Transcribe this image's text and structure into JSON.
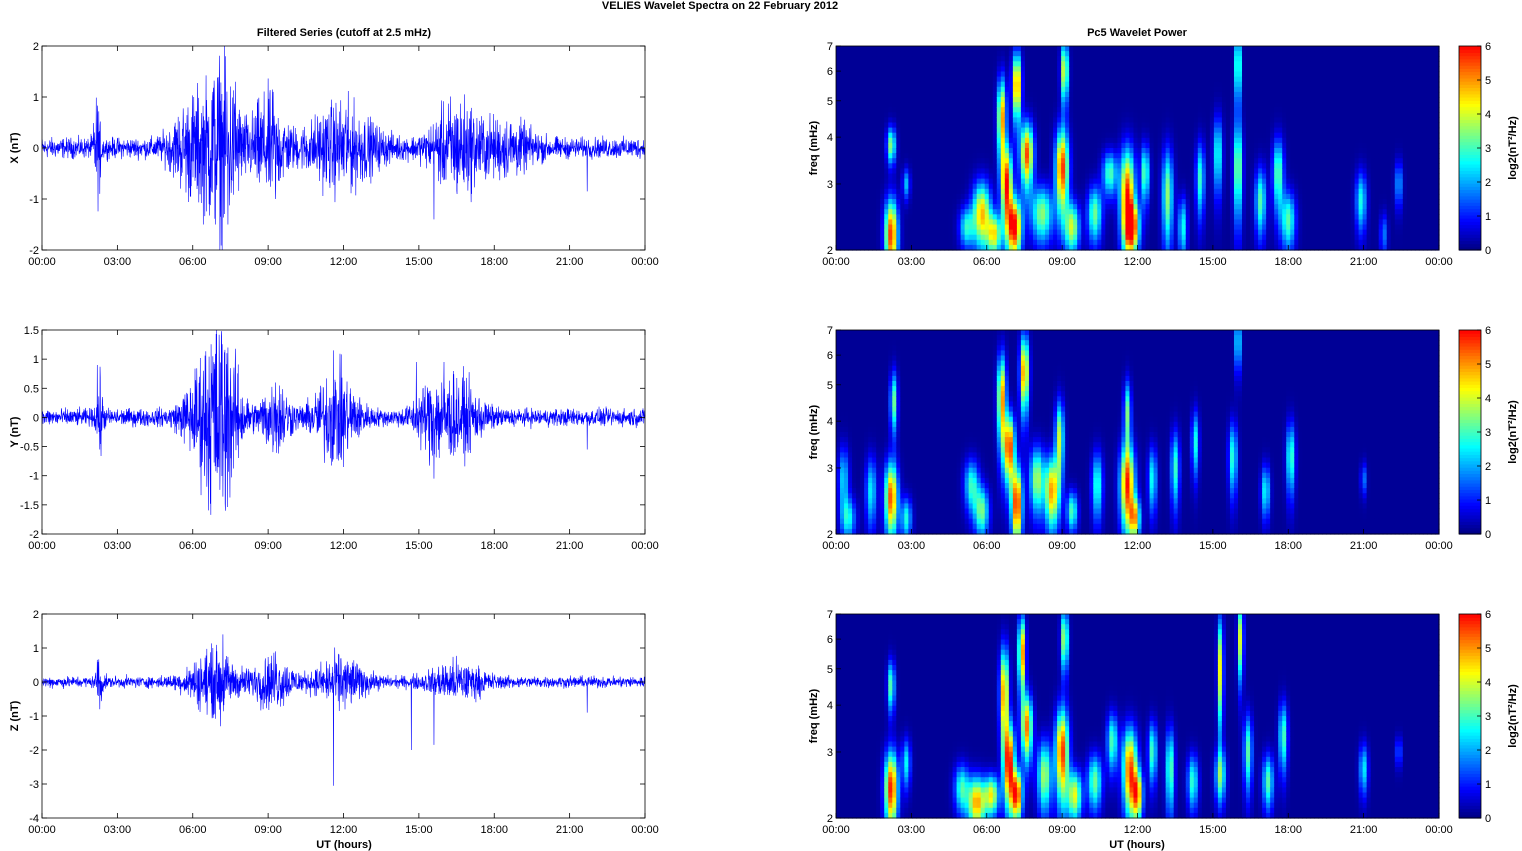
{
  "figure_title": "VELIES Wavelet Spectra on 22 February  2012",
  "left_title": "Filtered Series (cutoff at 2.5 mHz)",
  "right_title": "Pc5 Wavelet Power",
  "xlabel": "UT (hours)",
  "colorbar_label": "log2(nT²/Hz)",
  "colorbar_ticks": [
    "0",
    "1",
    "2",
    "3",
    "4",
    "5",
    "6"
  ],
  "time_ticks": [
    "00:00",
    "03:00",
    "06:00",
    "09:00",
    "12:00",
    "15:00",
    "18:00",
    "21:00",
    "00:00"
  ],
  "freq_ticks": [
    "2",
    "3",
    "4",
    "5",
    "6",
    "7"
  ],
  "freq_label": "freq (mHz)",
  "colors": {
    "trace": "#0000ff",
    "jet_low": "#00008f",
    "jet_high": "#800000"
  },
  "chart_data": [
    {
      "type": "line",
      "title": "Filtered Series (cutoff at 2.5 mHz)",
      "ylabel": "X (nT)",
      "xlabel": "",
      "x_range_hours": [
        0,
        24
      ],
      "ylim": [
        -2,
        2
      ],
      "yticks": [
        "2",
        "1",
        "0",
        "-1",
        "-2"
      ],
      "baseline_amplitude": 0.12,
      "bursts": [
        [
          2.2,
          0.1,
          0.55
        ],
        [
          6.0,
          0.6,
          0.5
        ],
        [
          7.2,
          0.5,
          0.9
        ],
        [
          9.0,
          0.5,
          0.55
        ],
        [
          11.9,
          1.0,
          0.45
        ],
        [
          16.5,
          0.7,
          0.5
        ],
        [
          18.5,
          0.8,
          0.25
        ]
      ],
      "spikes": [
        [
          2.2,
          0.65
        ],
        [
          2.3,
          -0.9
        ],
        [
          6.8,
          1.1
        ],
        [
          6.9,
          -1.5
        ],
        [
          7.3,
          1.8
        ],
        [
          7.4,
          -1.5
        ],
        [
          7.7,
          1.3
        ],
        [
          9.2,
          1.1
        ],
        [
          9.3,
          -1.0
        ],
        [
          12.1,
          0.75
        ],
        [
          15.6,
          -1.4
        ],
        [
          21.7,
          -0.85
        ]
      ]
    },
    {
      "type": "line",
      "ylabel": "Y (nT)",
      "xlabel": "",
      "x_range_hours": [
        0,
        24
      ],
      "ylim": [
        -2,
        1.5
      ],
      "yticks": [
        "1.5",
        "1",
        "0.5",
        "0",
        "-0.5",
        "-1",
        "-1.5",
        "-2"
      ],
      "baseline_amplitude": 0.09,
      "bursts": [
        [
          2.3,
          0.1,
          0.35
        ],
        [
          6.5,
          0.6,
          0.45
        ],
        [
          7.2,
          0.5,
          0.75
        ],
        [
          9.3,
          0.4,
          0.35
        ],
        [
          11.7,
          0.6,
          0.45
        ],
        [
          15.6,
          0.5,
          0.35
        ],
        [
          16.7,
          0.6,
          0.3
        ]
      ],
      "spikes": [
        [
          2.2,
          0.9
        ],
        [
          2.3,
          -0.55
        ],
        [
          6.8,
          1.05
        ],
        [
          7.0,
          -0.85
        ],
        [
          7.4,
          1.2
        ],
        [
          7.3,
          -1.6
        ],
        [
          9.3,
          0.6
        ],
        [
          11.6,
          1.15
        ],
        [
          12.0,
          -0.85
        ],
        [
          14.9,
          0.95
        ],
        [
          15.6,
          -1.05
        ],
        [
          16.0,
          0.95
        ],
        [
          21.7,
          0.7
        ],
        [
          21.7,
          -0.55
        ]
      ]
    },
    {
      "type": "line",
      "ylabel": "Z (nT)",
      "xlabel": "UT (hours)",
      "x_range_hours": [
        0,
        24
      ],
      "ylim": [
        -4,
        2
      ],
      "yticks": [
        "2",
        "1",
        "0",
        "-1",
        "-2",
        "-3",
        "-4"
      ],
      "baseline_amplitude": 0.1,
      "bursts": [
        [
          2.3,
          0.1,
          0.4
        ],
        [
          6.8,
          0.7,
          0.5
        ],
        [
          9.2,
          0.6,
          0.4
        ],
        [
          11.9,
          0.7,
          0.4
        ],
        [
          16.5,
          0.8,
          0.3
        ]
      ],
      "spikes": [
        [
          2.2,
          0.65
        ],
        [
          2.3,
          -0.8
        ],
        [
          6.8,
          1.0
        ],
        [
          7.2,
          1.4
        ],
        [
          7.1,
          -1.3
        ],
        [
          8.8,
          -0.8
        ],
        [
          9.3,
          0.9
        ],
        [
          11.6,
          -3.05
        ],
        [
          11.9,
          0.7
        ],
        [
          14.7,
          -2.0
        ],
        [
          15.6,
          -1.85
        ],
        [
          21.7,
          -0.9
        ]
      ]
    },
    {
      "type": "heatmap",
      "title": "Pc5 Wavelet Power",
      "ylabel": "freq (mHz)",
      "xlabel": "",
      "x_range_hours": [
        0,
        24
      ],
      "ylim_mhz": [
        2,
        7
      ],
      "y_scale": "log",
      "colorbar_label": "log2(nT²/Hz)",
      "clim": [
        0,
        6
      ],
      "blobs": [
        [
          2.2,
          2.2,
          0.18,
          0.35,
          5.6
        ],
        [
          2.2,
          3.8,
          0.12,
          0.3,
          3.5
        ],
        [
          2.8,
          3.0,
          0.1,
          0.2,
          2.0
        ],
        [
          5.2,
          2.3,
          0.2,
          0.2,
          2.6
        ],
        [
          5.8,
          2.5,
          0.25,
          0.35,
          4.6
        ],
        [
          6.3,
          2.2,
          0.2,
          0.2,
          4.0
        ],
        [
          6.6,
          4.5,
          0.12,
          0.8,
          5.0
        ],
        [
          6.8,
          3.0,
          0.15,
          0.5,
          5.6
        ],
        [
          7.1,
          2.3,
          0.2,
          0.3,
          6.0
        ],
        [
          7.2,
          5.5,
          0.12,
          0.8,
          5.4
        ],
        [
          7.6,
          3.6,
          0.18,
          0.5,
          5.4
        ],
        [
          8.2,
          2.5,
          0.3,
          0.3,
          3.4
        ],
        [
          9.0,
          3.3,
          0.18,
          0.6,
          5.6
        ],
        [
          9.1,
          6.0,
          0.1,
          0.8,
          4.4
        ],
        [
          9.4,
          2.3,
          0.2,
          0.25,
          3.8
        ],
        [
          10.3,
          2.5,
          0.2,
          0.3,
          3.2
        ],
        [
          10.9,
          3.2,
          0.2,
          0.3,
          3.0
        ],
        [
          11.6,
          2.8,
          0.2,
          0.6,
          5.6
        ],
        [
          11.8,
          2.3,
          0.2,
          0.25,
          4.8
        ],
        [
          12.3,
          3.2,
          0.12,
          0.4,
          3.2
        ],
        [
          13.2,
          2.8,
          0.15,
          0.6,
          3.4
        ],
        [
          13.8,
          2.3,
          0.12,
          0.3,
          2.6
        ],
        [
          14.5,
          3.1,
          0.12,
          0.5,
          2.8
        ],
        [
          15.2,
          3.6,
          0.12,
          0.6,
          2.8
        ],
        [
          16.0,
          3.3,
          0.12,
          0.7,
          3.6
        ],
        [
          16.0,
          6.2,
          0.08,
          1.0,
          4.0
        ],
        [
          16.9,
          2.7,
          0.15,
          0.4,
          3.0
        ],
        [
          17.6,
          3.2,
          0.15,
          0.5,
          3.2
        ],
        [
          18.0,
          2.4,
          0.2,
          0.3,
          3.0
        ],
        [
          20.9,
          2.7,
          0.15,
          0.35,
          2.6
        ],
        [
          22.4,
          3.0,
          0.1,
          0.3,
          2.0
        ],
        [
          21.8,
          2.2,
          0.1,
          0.2,
          1.6
        ]
      ]
    },
    {
      "type": "heatmap",
      "ylabel": "freq (mHz)",
      "xlabel": "",
      "x_range_hours": [
        0,
        24
      ],
      "ylim_mhz": [
        2,
        7
      ],
      "y_scale": "log",
      "colorbar_label": "log2(nT²/Hz)",
      "clim": [
        0,
        6
      ],
      "blobs": [
        [
          0.3,
          2.8,
          0.15,
          0.4,
          2.2
        ],
        [
          0.5,
          2.2,
          0.2,
          0.2,
          2.4
        ],
        [
          1.4,
          2.6,
          0.15,
          0.4,
          2.4
        ],
        [
          2.2,
          2.5,
          0.18,
          0.4,
          5.4
        ],
        [
          2.3,
          4.5,
          0.1,
          0.6,
          3.2
        ],
        [
          2.8,
          2.2,
          0.15,
          0.2,
          2.6
        ],
        [
          5.4,
          2.7,
          0.2,
          0.3,
          2.8
        ],
        [
          5.8,
          2.3,
          0.2,
          0.25,
          3.2
        ],
        [
          6.6,
          4.6,
          0.12,
          0.9,
          5.0
        ],
        [
          6.9,
          3.4,
          0.15,
          0.5,
          5.6
        ],
        [
          7.2,
          2.4,
          0.15,
          0.4,
          5.8
        ],
        [
          7.5,
          5.4,
          0.12,
          0.9,
          5.2
        ],
        [
          8.0,
          2.8,
          0.2,
          0.4,
          3.6
        ],
        [
          8.6,
          2.6,
          0.2,
          0.4,
          4.8
        ],
        [
          8.9,
          3.6,
          0.12,
          0.6,
          3.8
        ],
        [
          9.4,
          2.3,
          0.15,
          0.2,
          3.0
        ],
        [
          10.4,
          2.7,
          0.15,
          0.4,
          2.8
        ],
        [
          11.6,
          2.7,
          0.2,
          0.5,
          5.6
        ],
        [
          11.9,
          2.2,
          0.15,
          0.2,
          4.0
        ],
        [
          11.6,
          4.2,
          0.1,
          0.6,
          3.2
        ],
        [
          12.6,
          2.8,
          0.12,
          0.4,
          2.6
        ],
        [
          13.5,
          3.0,
          0.12,
          0.5,
          2.8
        ],
        [
          14.3,
          3.5,
          0.1,
          0.5,
          2.6
        ],
        [
          15.8,
          3.2,
          0.12,
          0.5,
          2.8
        ],
        [
          16.0,
          6.5,
          0.08,
          0.8,
          3.0
        ],
        [
          17.1,
          2.6,
          0.12,
          0.3,
          2.6
        ],
        [
          18.1,
          3.2,
          0.12,
          0.5,
          3.0
        ],
        [
          21.0,
          2.8,
          0.08,
          0.2,
          1.6
        ]
      ]
    },
    {
      "type": "heatmap",
      "ylabel": "freq (mHz)",
      "xlabel": "UT (hours)",
      "x_range_hours": [
        0,
        24
      ],
      "ylim_mhz": [
        2,
        7
      ],
      "y_scale": "log",
      "colorbar_label": "log2(nT²/Hz)",
      "clim": [
        0,
        6
      ],
      "blobs": [
        [
          2.2,
          2.4,
          0.18,
          0.4,
          5.8
        ],
        [
          2.2,
          4.5,
          0.1,
          0.5,
          3.2
        ],
        [
          2.8,
          2.8,
          0.12,
          0.3,
          2.4
        ],
        [
          5.0,
          2.4,
          0.2,
          0.25,
          2.8
        ],
        [
          5.6,
          2.2,
          0.25,
          0.25,
          4.8
        ],
        [
          6.2,
          2.3,
          0.2,
          0.2,
          4.0
        ],
        [
          6.7,
          4.3,
          0.12,
          0.9,
          5.2
        ],
        [
          6.9,
          2.8,
          0.15,
          0.5,
          5.8
        ],
        [
          7.2,
          2.3,
          0.15,
          0.25,
          5.6
        ],
        [
          7.4,
          5.5,
          0.1,
          0.9,
          5.2
        ],
        [
          7.6,
          3.5,
          0.15,
          0.5,
          5.0
        ],
        [
          8.3,
          2.6,
          0.2,
          0.4,
          3.6
        ],
        [
          9.0,
          3.0,
          0.18,
          0.6,
          5.6
        ],
        [
          9.1,
          6.0,
          0.1,
          0.8,
          4.0
        ],
        [
          9.5,
          2.3,
          0.2,
          0.25,
          4.0
        ],
        [
          10.3,
          2.5,
          0.2,
          0.3,
          3.2
        ],
        [
          11.0,
          3.2,
          0.15,
          0.4,
          3.0
        ],
        [
          11.7,
          2.7,
          0.2,
          0.5,
          5.4
        ],
        [
          12.0,
          2.3,
          0.15,
          0.25,
          4.4
        ],
        [
          12.6,
          3.0,
          0.12,
          0.4,
          3.0
        ],
        [
          13.3,
          2.7,
          0.12,
          0.5,
          3.2
        ],
        [
          14.2,
          2.5,
          0.15,
          0.3,
          2.8
        ],
        [
          15.3,
          5.0,
          0.08,
          1.2,
          4.2
        ],
        [
          15.3,
          2.6,
          0.15,
          0.3,
          3.0
        ],
        [
          16.1,
          6.0,
          0.08,
          1.0,
          4.0
        ],
        [
          16.4,
          3.0,
          0.12,
          0.5,
          3.0
        ],
        [
          17.2,
          2.5,
          0.15,
          0.3,
          3.0
        ],
        [
          17.8,
          3.3,
          0.12,
          0.5,
          3.0
        ],
        [
          21.0,
          2.7,
          0.12,
          0.3,
          2.4
        ],
        [
          22.4,
          3.0,
          0.08,
          0.2,
          1.6
        ]
      ]
    }
  ]
}
